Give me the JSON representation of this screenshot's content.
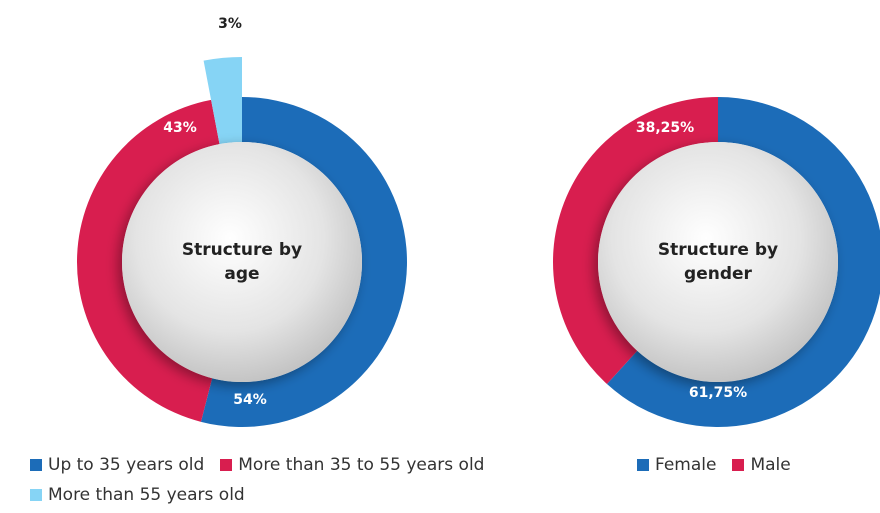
{
  "chart_data": [
    {
      "type": "pie",
      "title": "Structure by age",
      "categories": [
        "Up to 35 years old",
        "More than 35 to 55 years old",
        "More than 55 years old"
      ],
      "values": [
        54,
        43,
        3
      ],
      "value_labels": [
        "54%",
        "43%",
        "3%"
      ],
      "colors": [
        "#1c6cb8",
        "#d81e4f",
        "#86d4f5"
      ]
    },
    {
      "type": "pie",
      "title": "Structure by gender",
      "categories": [
        "Female",
        "Male"
      ],
      "values": [
        61.75,
        38.25
      ],
      "value_labels": [
        "61,75%",
        "38,25%"
      ],
      "colors": [
        "#1c6cb8",
        "#d81e4f"
      ]
    }
  ]
}
